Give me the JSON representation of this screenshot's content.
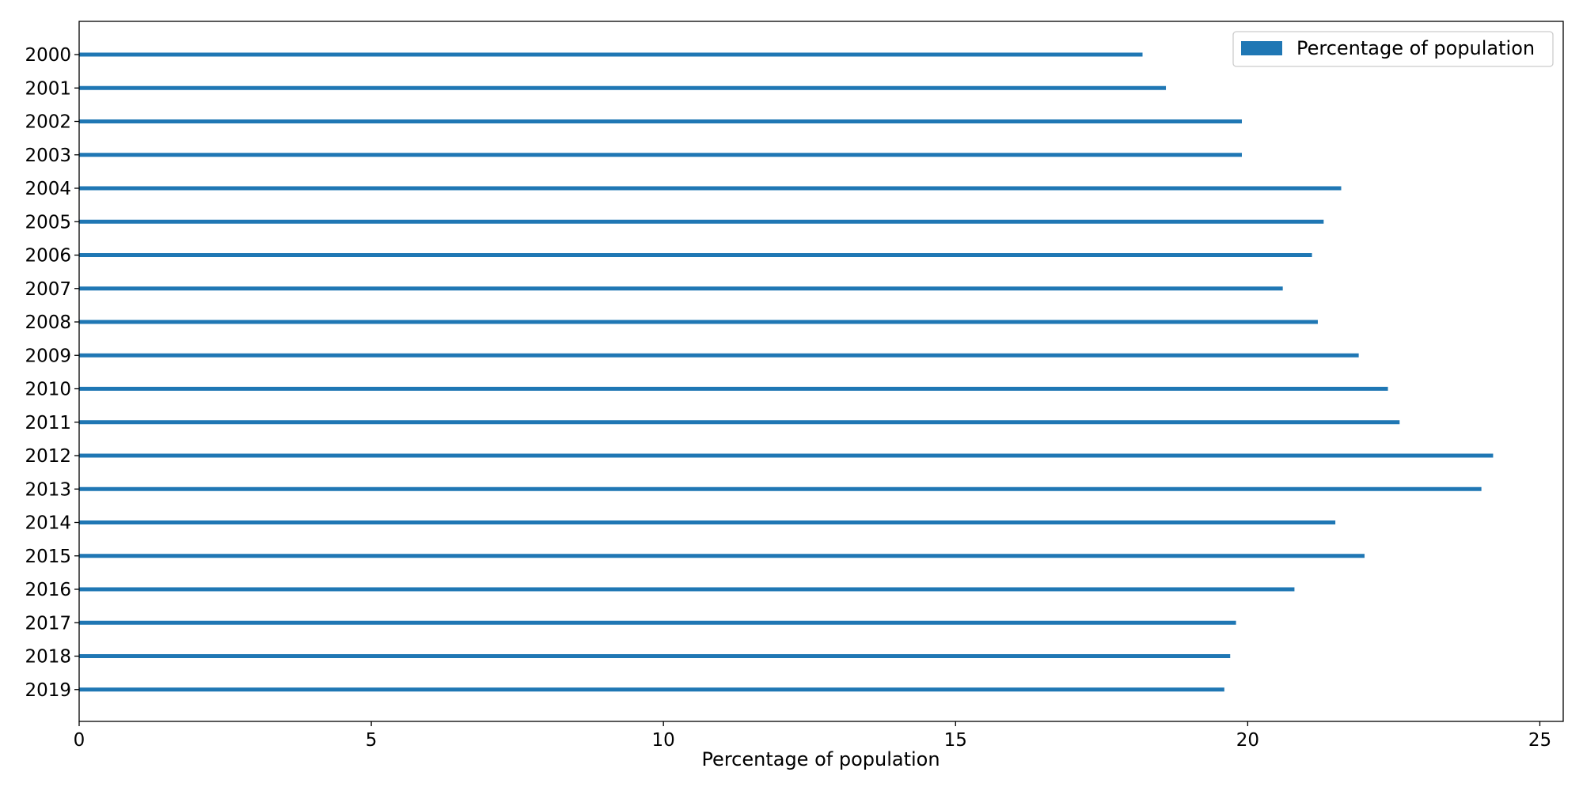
{
  "chart_data": {
    "type": "bar",
    "orientation": "horizontal",
    "categories": [
      "2000",
      "2001",
      "2002",
      "2003",
      "2004",
      "2005",
      "2006",
      "2007",
      "2008",
      "2009",
      "2010",
      "2011",
      "2012",
      "2013",
      "2014",
      "2015",
      "2016",
      "2017",
      "2018",
      "2019"
    ],
    "series": [
      {
        "name": "Percentage of population",
        "color": "#1f77b4",
        "values": [
          18.2,
          18.6,
          19.9,
          19.9,
          21.6,
          21.3,
          21.1,
          20.6,
          21.2,
          21.9,
          22.4,
          22.6,
          24.2,
          24.0,
          21.5,
          22.0,
          20.8,
          19.8,
          19.7,
          19.6
        ]
      }
    ],
    "title": "",
    "xlabel": "Percentage of population",
    "ylabel": "",
    "xlim": [
      0,
      25.4
    ],
    "xticks": [
      0,
      5,
      10,
      15,
      20,
      25
    ],
    "xtick_labels": [
      "0",
      "5",
      "10",
      "15",
      "20",
      "25"
    ],
    "grid": false,
    "legend_position": "top-right",
    "inverted_category_axis": true
  }
}
